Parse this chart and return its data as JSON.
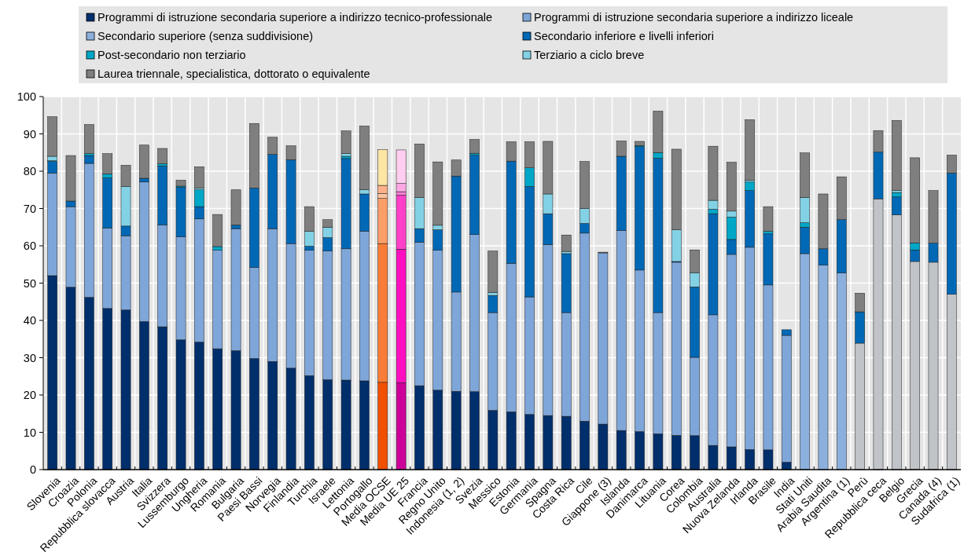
{
  "chart_data": {
    "type": "bar",
    "stacked": true,
    "legend": "top",
    "grid": true,
    "categories": [
      "Slovenia",
      "Croazia",
      "Polonia",
      "Repubblica slovacca",
      "Austria",
      "Italia",
      "Svizzera",
      "Lussemburgo",
      "Ungheria",
      "Romania",
      "Bulgaria",
      "Paesi Bassi",
      "Norvegia",
      "Finlandia",
      "Turchia",
      "Israele",
      "Lettonia",
      "Portogallo",
      "Media OCSE",
      "Media UE 25",
      "Francia",
      "Regno Unito",
      "Indonesia (1, 2)",
      "Svezia",
      "Messico",
      "Estonia",
      "Germania",
      "Spagna",
      "Costa Rica",
      "Cile",
      "Giappone (3)",
      "Islanda",
      "Danimarca",
      "Lituania",
      "Corea",
      "Colombia",
      "Australia",
      "Nuova Zelanda",
      "Irlanda",
      "Brasile",
      "India",
      "Stati Uniti",
      "Arabia Saudita",
      "Argentina (1)",
      "Perù",
      "Repubblica ceca",
      "Belgio",
      "Grecia",
      "Canada (4)",
      "Sudafrica (1)"
    ],
    "ylim": [
      0,
      100
    ],
    "yticks": [
      0,
      10,
      20,
      30,
      40,
      50,
      60,
      70,
      80,
      90,
      100
    ],
    "series": [
      {
        "name": "Programmi di istruzione secondaria superiore a indirizzo tecnico-professionale",
        "color": "#002f6c",
        "values": [
          52.0,
          48.9,
          46.2,
          43.2,
          42.8,
          39.7,
          38.3,
          34.8,
          34.2,
          32.4,
          31.9,
          29.8,
          29.0,
          27.2,
          25.2,
          24.1,
          24.0,
          23.8,
          23.4,
          23.3,
          22.5,
          21.3,
          21.0,
          20.9,
          15.9,
          15.5,
          14.8,
          14.5,
          14.3,
          13.0,
          12.2,
          10.5,
          10.2,
          9.6,
          9.2,
          9.1,
          6.5,
          6.1,
          5.4,
          5.3,
          2.0,
          null,
          null,
          null,
          null,
          null,
          null,
          null,
          null,
          null
        ],
        "colors": [
          "#002f6c",
          "#002f6c",
          "#002f6c",
          "#002f6c",
          "#002f6c",
          "#002f6c",
          "#002f6c",
          "#002f6c",
          "#002f6c",
          "#002f6c",
          "#002f6c",
          "#002f6c",
          "#002f6c",
          "#002f6c",
          "#002f6c",
          "#002f6c",
          "#002f6c",
          "#002f6c",
          "#f05000",
          "#cc0099",
          "#002f6c",
          "#002f6c",
          "#002f6c",
          "#002f6c",
          "#002f6c",
          "#002f6c",
          "#002f6c",
          "#002f6c",
          "#002f6c",
          "#002f6c",
          "#002f6c",
          "#002f6c",
          "#002f6c",
          "#002f6c",
          "#002f6c",
          "#002f6c",
          "#002f6c",
          "#002f6c",
          "#002f6c",
          "#002f6c",
          "#002f6c",
          null,
          null,
          null,
          null,
          null,
          null,
          null,
          null,
          null
        ]
      },
      {
        "name": "Programmi di istruzione secondaria superiore a indirizzo liceale",
        "color": "#7fa6d9",
        "values": [
          27.5,
          21.6,
          35.9,
          21.6,
          19.9,
          37.4,
          27.3,
          27.6,
          33.0,
          26.4,
          32.7,
          24.4,
          35.6,
          33.4,
          33.6,
          34.5,
          35.2,
          40.1,
          37.2,
          35.8,
          38.5,
          37.5,
          26.6,
          42.1,
          26.2,
          39.8,
          31.5,
          45.8,
          27.8,
          50.4,
          45.9,
          53.6,
          43.3,
          32.5,
          46.4,
          21.0,
          35.0,
          51.6,
          54.2,
          44.2,
          34.0,
          null,
          null,
          null,
          null,
          null,
          null,
          null,
          null,
          null
        ],
        "colors": [
          "#7fa6d9",
          "#7fa6d9",
          "#7fa6d9",
          "#7fa6d9",
          "#7fa6d9",
          "#7fa6d9",
          "#7fa6d9",
          "#7fa6d9",
          "#7fa6d9",
          "#7fa6d9",
          "#7fa6d9",
          "#7fa6d9",
          "#7fa6d9",
          "#7fa6d9",
          "#7fa6d9",
          "#7fa6d9",
          "#7fa6d9",
          "#7fa6d9",
          "#fb7c36",
          "#ff0fbf",
          "#7fa6d9",
          "#7fa6d9",
          "#7fa6d9",
          "#7fa6d9",
          "#7fa6d9",
          "#7fa6d9",
          "#7fa6d9",
          "#7fa6d9",
          "#7fa6d9",
          "#7fa6d9",
          "#7fa6d9",
          "#7fa6d9",
          "#7fa6d9",
          "#7fa6d9",
          "#7fa6d9",
          "#7fa6d9",
          "#7fa6d9",
          "#7fa6d9",
          "#7fa6d9",
          "#7fa6d9",
          "#7fa6d9",
          null,
          null,
          null,
          null,
          null,
          null,
          null,
          null,
          null
        ]
      },
      {
        "name": "Secondario superiore (senza suddivisione)",
        "color": "#8cb0dd",
        "values": [
          null,
          null,
          null,
          null,
          null,
          null,
          null,
          null,
          null,
          null,
          null,
          null,
          null,
          null,
          null,
          null,
          null,
          null,
          null,
          null,
          null,
          null,
          null,
          null,
          null,
          null,
          null,
          null,
          null,
          null,
          null,
          null,
          null,
          null,
          null,
          null,
          null,
          null,
          null,
          null,
          null,
          57.9,
          54.8,
          52.7,
          33.9,
          72.6,
          68.3,
          55.8,
          55.6,
          47.0
        ],
        "colors": [
          null,
          null,
          null,
          null,
          null,
          null,
          null,
          null,
          null,
          null,
          null,
          null,
          null,
          null,
          null,
          null,
          null,
          null,
          null,
          null,
          null,
          null,
          null,
          null,
          null,
          null,
          null,
          null,
          null,
          null,
          null,
          null,
          null,
          null,
          null,
          null,
          null,
          null,
          null,
          null,
          null,
          "#8cb0dd",
          "#8cb0dd",
          "#8cb0dd",
          "#c0c4c8",
          "#c0c4c8",
          "#c0c4c8",
          "#c0c4c8",
          "#c0c4c8",
          "#c0c4c8"
        ]
      },
      {
        "name": "Secondario inferiore e livelli inferiori",
        "color": "#0068b5",
        "values": [
          3.1,
          1.5,
          2.1,
          13.4,
          2.6,
          1.0,
          15.8,
          13.3,
          3.3,
          null,
          1.0,
          21.3,
          19.9,
          22.5,
          1.1,
          3.6,
          24.2,
          10.0,
          12.1,
          14.5,
          3.6,
          5.5,
          31.1,
          21.3,
          4.6,
          27.4,
          29.6,
          8.3,
          15.8,
          2.6,
          null,
          19.9,
          33.1,
          41.4,
          0.2,
          18.9,
          27.1,
          4.0,
          15.2,
          13.7,
          1.5,
          7.1,
          4.4,
          14.3,
          8.4,
          12.5,
          4.8,
          3.1,
          5.1,
          32.5
        ],
        "colors": [
          "#0068b5",
          "#0068b5",
          "#0068b5",
          "#0068b5",
          "#0068b5",
          "#0068b5",
          "#0068b5",
          "#0068b5",
          "#0068b5",
          null,
          "#0068b5",
          "#0068b5",
          "#0068b5",
          "#0068b5",
          "#0068b5",
          "#0068b5",
          "#0068b5",
          "#0068b5",
          "#fd9d68",
          "#ff40c8",
          "#0068b5",
          "#0068b5",
          "#0068b5",
          "#0068b5",
          "#0068b5",
          "#0068b5",
          "#0068b5",
          "#0068b5",
          "#0068b5",
          "#0068b5",
          null,
          "#0068b5",
          "#0068b5",
          "#0068b5",
          "#0068b5",
          "#0068b5",
          "#0068b5",
          "#0068b5",
          "#0068b5",
          "#0068b5",
          "#0068b5",
          "#0068b5",
          "#0068b5",
          "#0068b5",
          "#0068b5",
          "#0068b5",
          "#0068b5",
          "#0068b5",
          "#0068b5",
          "#0068b5"
        ]
      },
      {
        "name": "Post-secondario non terziario",
        "color": "#00a7c7",
        "values": [
          0.2,
          null,
          0.5,
          1.1,
          null,
          null,
          0.6,
          0.3,
          4.5,
          1.0,
          null,
          null,
          null,
          null,
          null,
          null,
          0.6,
          null,
          1.3,
          0.9,
          null,
          null,
          null,
          0.5,
          null,
          null,
          5.0,
          null,
          null,
          null,
          null,
          null,
          0.3,
          1.5,
          null,
          null,
          1.2,
          6.0,
          2.3,
          0.7,
          null,
          1.2,
          null,
          null,
          null,
          null,
          1.2,
          1.9,
          null,
          null
        ],
        "colors": [
          "#00a7c7",
          null,
          "#00a7c7",
          "#00a7c7",
          null,
          null,
          "#00a7c7",
          "#00a7c7",
          "#00a7c7",
          "#00a7c7",
          null,
          null,
          null,
          null,
          null,
          null,
          "#00a7c7",
          null,
          "#fdc39f",
          "#ff80d8",
          null,
          null,
          null,
          "#00a7c7",
          null,
          null,
          "#00a7c7",
          null,
          null,
          null,
          null,
          null,
          "#00a7c7",
          "#00a7c7",
          null,
          null,
          "#00a7c7",
          "#00a7c7",
          "#00a7c7",
          "#00a7c7",
          null,
          "#00a7c7",
          null,
          null,
          null,
          null,
          "#00a7c7",
          "#00a7c7",
          null,
          null
        ]
      },
      {
        "name": "Terziario a ciclo breve",
        "color": "#83d1e5",
        "values": [
          1.2,
          null,
          null,
          null,
          10.6,
          null,
          null,
          null,
          0.5,
          null,
          null,
          null,
          null,
          null,
          4.0,
          2.8,
          0.7,
          1.1,
          2.2,
          2.2,
          8.3,
          1.2,
          null,
          null,
          0.8,
          null,
          null,
          5.3,
          0.6,
          4.0,
          null,
          null,
          null,
          null,
          8.5,
          3.8,
          2.4,
          1.6,
          0.5,
          null,
          null,
          6.8,
          null,
          null,
          null,
          null,
          0.5,
          null,
          null,
          null
        ],
        "colors": [
          "#83d1e5",
          null,
          null,
          null,
          "#83d1e5",
          null,
          null,
          null,
          "#83d1e5",
          null,
          null,
          null,
          null,
          null,
          "#83d1e5",
          "#83d1e5",
          "#83d1e5",
          "#83d1e5",
          "#fdb08a",
          "#ffa8e4",
          "#83d1e5",
          "#83d1e5",
          null,
          null,
          "#83d1e5",
          null,
          null,
          "#83d1e5",
          "#83d1e5",
          "#83d1e5",
          null,
          null,
          null,
          null,
          "#83d1e5",
          "#83d1e5",
          "#83d1e5",
          "#83d1e5",
          "#83d1e5",
          null,
          null,
          "#83d1e5",
          null,
          null,
          null,
          null,
          "#83d1e5",
          null,
          null,
          null
        ]
      },
      {
        "name": "Laurea triennale, specialistica, dottorato o equivalente",
        "color": "#7f7f7f",
        "values": [
          10.6,
          12.2,
          7.8,
          5.4,
          5.7,
          8.9,
          4.1,
          1.6,
          5.7,
          8.6,
          9.4,
          17.3,
          4.6,
          3.7,
          6.6,
          2.0,
          6.1,
          17.1,
          9.6,
          9.0,
          14.4,
          17.0,
          4.3,
          3.7,
          11.1,
          5.2,
          7.0,
          14.1,
          4.4,
          12.6,
          0.2,
          4.1,
          1.1,
          11.1,
          21.6,
          6.1,
          14.5,
          13.1,
          16.2,
          6.6,
          null,
          11.9,
          14.7,
          11.5,
          5.0,
          5.8,
          18.8,
          22.8,
          14.1,
          4.8
        ],
        "colors": [
          "#7f7f7f",
          "#7f7f7f",
          "#7f7f7f",
          "#7f7f7f",
          "#7f7f7f",
          "#7f7f7f",
          "#7f7f7f",
          "#7f7f7f",
          "#7f7f7f",
          "#7f7f7f",
          "#7f7f7f",
          "#7f7f7f",
          "#7f7f7f",
          "#7f7f7f",
          "#7f7f7f",
          "#7f7f7f",
          "#7f7f7f",
          "#7f7f7f",
          "#fde5a6",
          "#ffcdf0",
          "#7f7f7f",
          "#7f7f7f",
          "#7f7f7f",
          "#7f7f7f",
          "#7f7f7f",
          "#7f7f7f",
          "#7f7f7f",
          "#7f7f7f",
          "#7f7f7f",
          "#7f7f7f",
          "#7f7f7f",
          "#7f7f7f",
          "#7f7f7f",
          "#7f7f7f",
          "#7f7f7f",
          "#7f7f7f",
          "#7f7f7f",
          "#7f7f7f",
          "#7f7f7f",
          "#7f7f7f",
          null,
          "#7f7f7f",
          "#7f7f7f",
          "#7f7f7f",
          "#7f7f7f",
          "#7f7f7f",
          "#7f7f7f",
          "#7f7f7f",
          "#7f7f7f",
          "#7f7f7f"
        ]
      }
    ]
  }
}
